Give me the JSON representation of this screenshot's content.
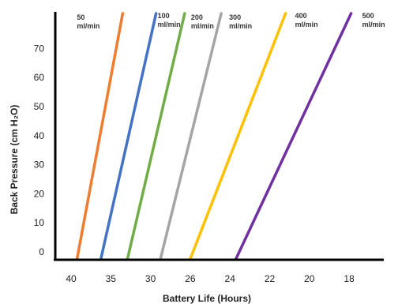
{
  "chart_data": {
    "type": "line",
    "title": "",
    "xlabel": "Battery Life (Hours)",
    "ylabel": "Back Pressure (cm H₂O)",
    "x_ticks": [
      "40",
      "35",
      "30",
      "26",
      "24",
      "22",
      "20",
      "18"
    ],
    "y_ticks": [
      "0",
      "10",
      "20",
      "30",
      "40",
      "50",
      "60",
      "70"
    ],
    "ylim": [
      0,
      76
    ],
    "grid": false,
    "legend": "none",
    "series": [
      {
        "label_line1": "50",
        "label_line2": "ml/min",
        "color": "#ED7D31",
        "x_start_pos": 0.15,
        "x_end_pos": 1.3
      },
      {
        "label_line1": "100",
        "label_line2": "ml/min",
        "color": "#4472C4",
        "x_start_pos": 0.75,
        "x_end_pos": 2.14
      },
      {
        "label_line1": "200",
        "label_line2": "ml/min",
        "color": "#70AD47",
        "x_start_pos": 1.42,
        "x_end_pos": 2.86
      },
      {
        "label_line1": "300",
        "label_line2": "ml/min",
        "color": "#A5A5A5",
        "x_start_pos": 2.25,
        "x_end_pos": 3.78
      },
      {
        "label_line1": "400",
        "label_line2": "ml/min",
        "color": "#FFC000",
        "x_start_pos": 3.0,
        "x_end_pos": 5.4
      },
      {
        "label_line1": "500",
        "label_line2": "ml/min",
        "color": "#7030A0",
        "x_start_pos": 4.15,
        "x_end_pos": 7.05
      }
    ]
  }
}
